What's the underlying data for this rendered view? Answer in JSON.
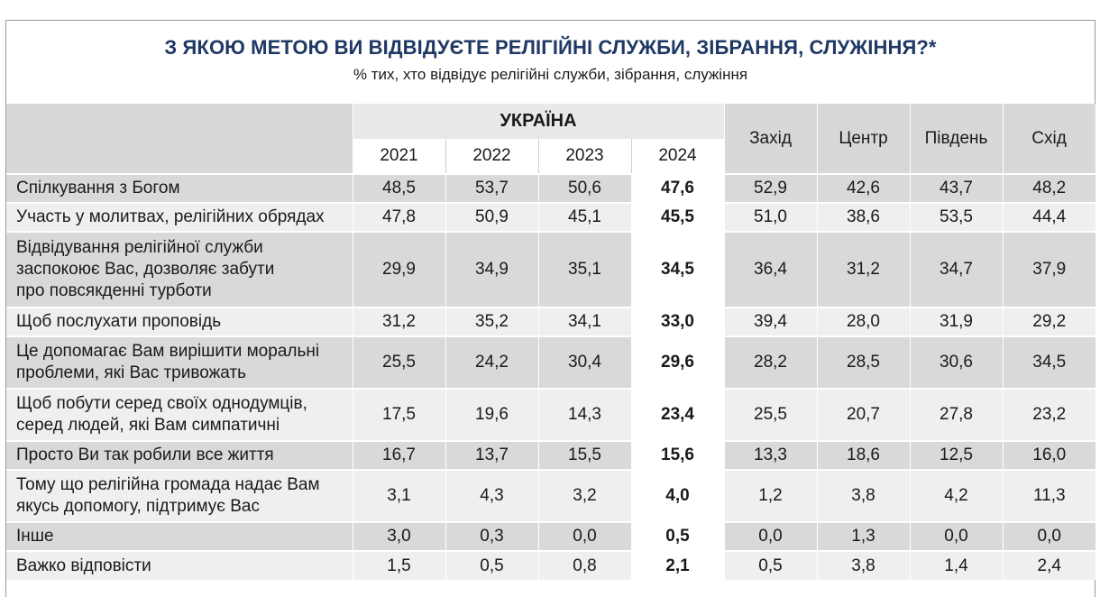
{
  "title": "З ЯКОЮ МЕТОЮ ВИ ВІДВІДУЄТЕ РЕЛІГІЙНІ СЛУЖБИ, ЗІБРАННЯ, СЛУЖІННЯ?*",
  "subtitle": "% тих, хто відвідує релігійні служби, зібрання, служіння",
  "header": {
    "ukraine": "УКРАЇНА",
    "years": [
      "2021",
      "2022",
      "2023",
      "2024"
    ],
    "regions": [
      "Захід",
      "Центр",
      "Південь",
      "Схід"
    ]
  },
  "rows": [
    {
      "label": [
        "Спілкування з Богом"
      ],
      "values": [
        "48,5",
        "53,7",
        "50,6",
        "47,6",
        "52,9",
        "42,6",
        "43,7",
        "48,2"
      ]
    },
    {
      "label": [
        "Участь у молитвах, релігійних обрядах"
      ],
      "values": [
        "47,8",
        "50,9",
        "45,1",
        "45,5",
        "51,0",
        "38,6",
        "53,5",
        "44,4"
      ]
    },
    {
      "label": [
        "Відвідування релігійної служби",
        "заспокоює Вас, дозволяє забути",
        "про повсякденні турботи"
      ],
      "values": [
        "29,9",
        "34,9",
        "35,1",
        "34,5",
        "36,4",
        "31,2",
        "34,7",
        "37,9"
      ]
    },
    {
      "label": [
        "Щоб послухати проповідь"
      ],
      "values": [
        "31,2",
        "35,2",
        "34,1",
        "33,0",
        "39,4",
        "28,0",
        "31,9",
        "29,2"
      ]
    },
    {
      "label": [
        "Це допомагає Вам вирішити моральні",
        "проблеми, які Вас тривожать"
      ],
      "values": [
        "25,5",
        "24,2",
        "30,4",
        "29,6",
        "28,2",
        "28,5",
        "30,6",
        "34,5"
      ]
    },
    {
      "label": [
        "Щоб побути серед своїх однодумців,",
        "серед людей, які Вам симпатичні"
      ],
      "values": [
        "17,5",
        "19,6",
        "14,3",
        "23,4",
        "25,5",
        "20,7",
        "27,8",
        "23,2"
      ]
    },
    {
      "label": [
        "Просто Ви так робили все життя"
      ],
      "values": [
        "16,7",
        "13,7",
        "15,5",
        "15,6",
        "13,3",
        "18,6",
        "12,5",
        "16,0"
      ]
    },
    {
      "label": [
        "Тому що релігійна громада надає Вам",
        "якусь допомогу, підтримує Вас"
      ],
      "values": [
        "3,1",
        "4,3",
        "3,2",
        "4,0",
        "1,2",
        "3,8",
        "4,2",
        "11,3"
      ]
    },
    {
      "label": [
        "Інше"
      ],
      "values": [
        "3,0",
        "0,3",
        "0,0",
        "0,5",
        "0,0",
        "1,3",
        "0,0",
        "0,0"
      ]
    },
    {
      "label": [
        "Важко відповісти"
      ],
      "values": [
        "1,5",
        "0,5",
        "0,8",
        "2,1",
        "0,5",
        "3,8",
        "1,4",
        "2,4"
      ]
    }
  ]
}
